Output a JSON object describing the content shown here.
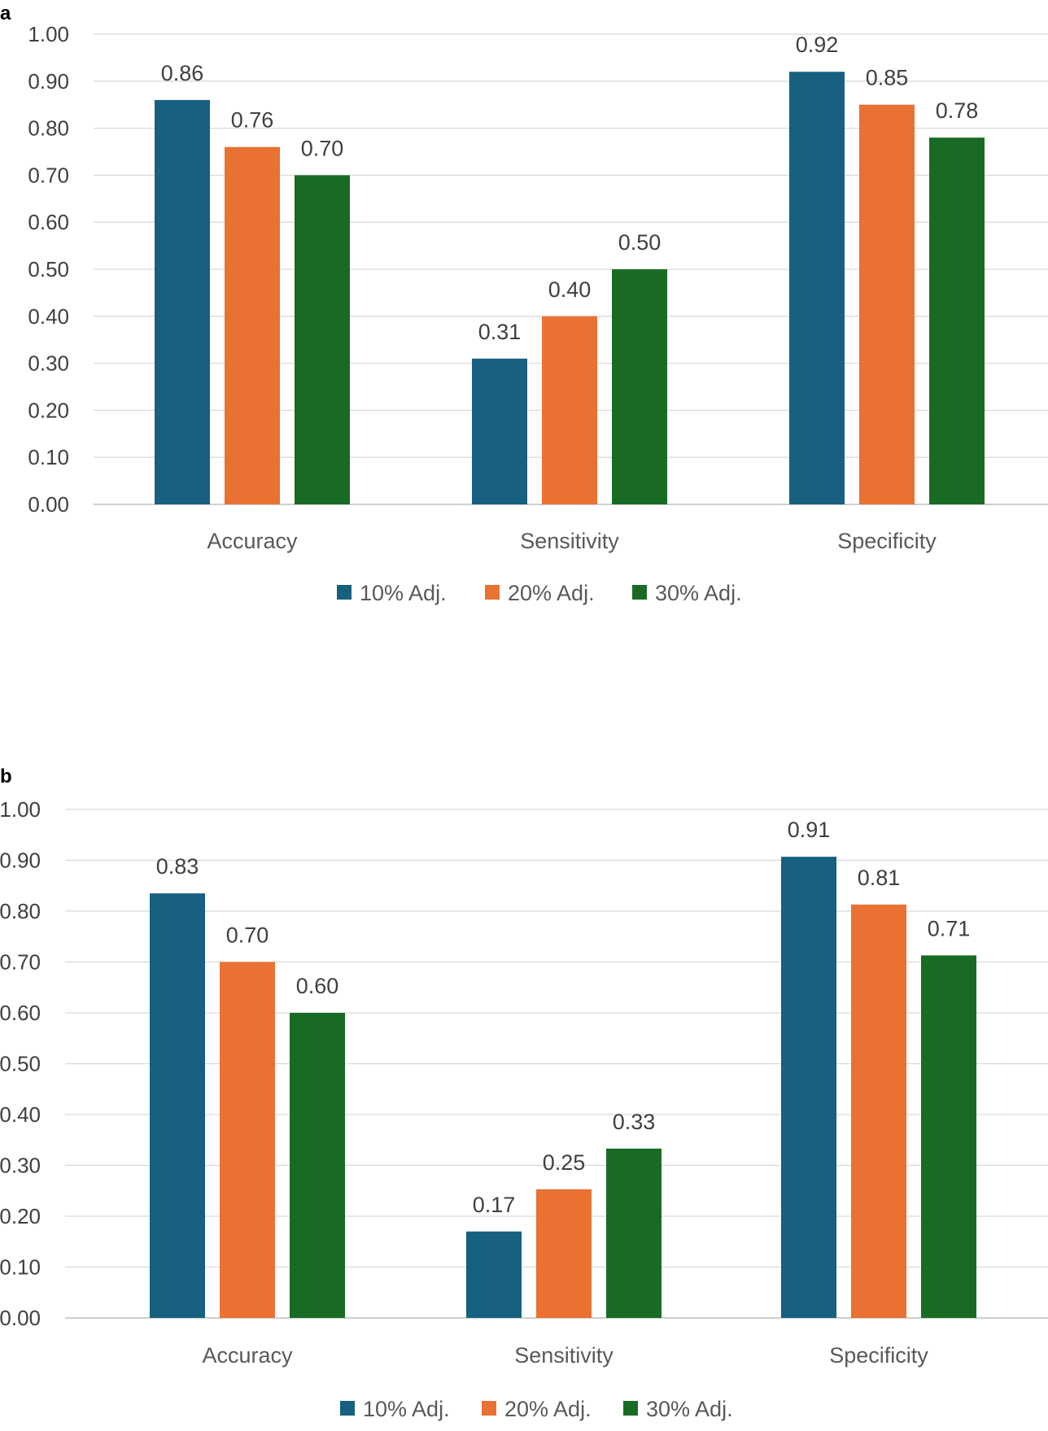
{
  "colors": {
    "s10": "#17607F",
    "s20": "#E97132",
    "s30": "#196B24",
    "grid": "#D9D9D9",
    "axis": "#BFBFBF"
  },
  "chart_data": [
    {
      "panel": "a",
      "type": "bar",
      "categories": [
        "Accuracy",
        "Sensitivity",
        "Specificity"
      ],
      "series": [
        {
          "name": "10% Adj.",
          "values": [
            0.86,
            0.31,
            0.92
          ],
          "labels": [
            "0.86",
            "0.31",
            "0.92"
          ]
        },
        {
          "name": "20% Adj.",
          "values": [
            0.76,
            0.4,
            0.85
          ],
          "labels": [
            "0.76",
            "0.40",
            "0.85"
          ]
        },
        {
          "name": "30% Adj.",
          "values": [
            0.7,
            0.5,
            0.78
          ],
          "labels": [
            "0.70",
            "0.50",
            "0.78"
          ]
        }
      ],
      "yticks": [
        "0.00",
        "0.10",
        "0.20",
        "0.30",
        "0.40",
        "0.50",
        "0.60",
        "0.70",
        "0.80",
        "0.90",
        "1.00"
      ],
      "ylim": [
        0,
        1
      ],
      "grid": true,
      "legend": "bottom-center"
    },
    {
      "panel": "b",
      "type": "bar",
      "categories": [
        "Accuracy",
        "Sensitivity",
        "Specificity"
      ],
      "series": [
        {
          "name": "10% Adj.",
          "values": [
            0.835,
            0.17,
            0.907
          ],
          "labels": [
            "0.83",
            "0.17",
            "0.91"
          ]
        },
        {
          "name": "20% Adj.",
          "values": [
            0.7,
            0.253,
            0.813
          ],
          "labels": [
            "0.70",
            "0.25",
            "0.81"
          ]
        },
        {
          "name": "30% Adj.",
          "values": [
            0.6,
            0.333,
            0.713
          ],
          "labels": [
            "0.60",
            "0.33",
            "0.71"
          ]
        }
      ],
      "yticks": [
        "0.00",
        "0.10",
        "0.20",
        "0.30",
        "0.40",
        "0.50",
        "0.60",
        "0.70",
        "0.80",
        "0.90",
        "1.00"
      ],
      "ylim": [
        0,
        1
      ],
      "grid": true,
      "legend": "bottom-center"
    }
  ]
}
